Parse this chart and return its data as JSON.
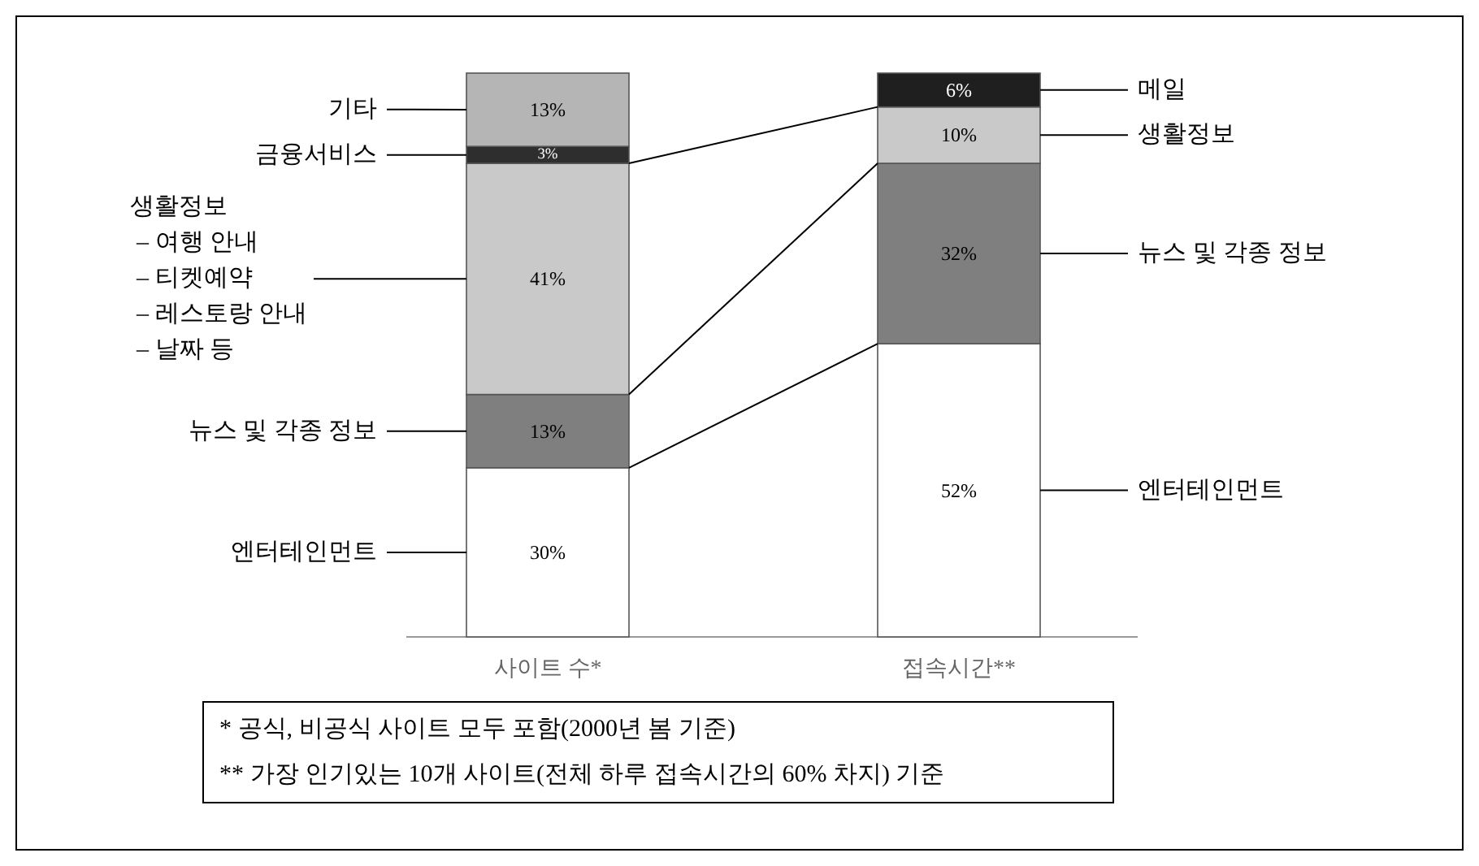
{
  "chart_data": {
    "type": "bar",
    "stacked": true,
    "categories": [
      "사이트 수*",
      "접속시간**"
    ],
    "series": [
      {
        "name": "엔터테인먼트",
        "color": "#ffffff",
        "values": [
          30,
          52
        ],
        "value_labels": [
          "30%",
          "52%"
        ]
      },
      {
        "name": "뉴스 및 각종 정보",
        "color": "#7f7f7f",
        "values": [
          13,
          32
        ],
        "value_labels": [
          "13%",
          "32%"
        ]
      },
      {
        "name": "생활정보",
        "color": "#c9c9c9",
        "values": [
          41,
          10
        ],
        "value_labels": [
          "41%",
          "10%"
        ]
      },
      {
        "name": "금융서비스",
        "color": "#2e2e2e",
        "values": [
          3,
          null
        ],
        "value_labels": [
          "3%",
          null
        ]
      },
      {
        "name": "기타",
        "color": "#b5b5b5",
        "values": [
          13,
          null
        ],
        "value_labels": [
          "13%",
          null
        ]
      },
      {
        "name": "메일",
        "color": "#1f1f1f",
        "values": [
          null,
          6
        ],
        "value_labels": [
          null,
          "6%"
        ]
      }
    ],
    "annotations": [
      "– 여행 안내",
      "– 티켓예약",
      "– 레스토랑 안내",
      "– 날짜 등",
      "* 공식, 비공식 사이트 모두 포함(2000년 봄 기준)",
      "** 가장 인기있는 10개 사이트(전체 하루 접속시간의 60% 차지) 기준"
    ]
  }
}
